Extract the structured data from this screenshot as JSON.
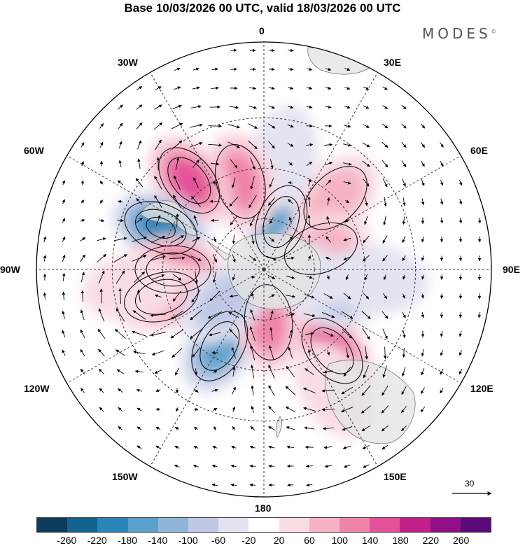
{
  "title": "Base 10/03/2026 00 UTC, valid 18/03/2026 00 UTC",
  "brand": "MODES",
  "brand_mark": "©",
  "longitude_labels": [
    "0",
    "30E",
    "60E",
    "90E",
    "120E",
    "150E",
    "180",
    "150W",
    "120W",
    "90W",
    "60W",
    "30W"
  ],
  "reference_vector": {
    "label": "30",
    "magnitude": 30
  },
  "colorbar": {
    "colors": [
      "#0d3b5c",
      "#14628f",
      "#2b85b8",
      "#5aa0cc",
      "#8fb6da",
      "#bfc9e6",
      "#e4e3f1",
      "#ffffff",
      "#f9dde2",
      "#f5b3c4",
      "#ef84a8",
      "#e2519a",
      "#c1208a",
      "#8f0f86",
      "#5b0b78"
    ],
    "tick_labels": [
      "-260",
      "-220",
      "-180",
      "-140",
      "-100",
      "-60",
      "-20",
      "20",
      "60",
      "100",
      "140",
      "180",
      "220",
      "260"
    ]
  },
  "field_anomalies": [
    {
      "lon": 20,
      "colat": 20,
      "value": -170
    },
    {
      "lon": 45,
      "colat": 40,
      "value": 90
    },
    {
      "lon": 70,
      "colat": 24,
      "value": 80
    },
    {
      "lon": 10,
      "colat": 45,
      "value": -30
    },
    {
      "lon": -15,
      "colat": 36,
      "value": 110
    },
    {
      "lon": -40,
      "colat": 46,
      "value": 150
    },
    {
      "lon": -68,
      "colat": 44,
      "value": -210
    },
    {
      "lon": -90,
      "colat": 36,
      "value": 160
    },
    {
      "lon": -105,
      "colat": 42,
      "value": 130
    },
    {
      "lon": -98,
      "colat": 52,
      "value": 50
    },
    {
      "lon": -150,
      "colat": 35,
      "value": -150
    },
    {
      "lon": 175,
      "colat": 21,
      "value": 100
    },
    {
      "lon": 140,
      "colat": 42,
      "value": 150
    },
    {
      "lon": 150,
      "colat": 55,
      "value": 40
    },
    {
      "lon": 110,
      "colat": 27,
      "value": -70
    },
    {
      "lon": 95,
      "colat": 45,
      "value": -30
    },
    {
      "lon": 100,
      "colat": 14,
      "value": -40
    },
    {
      "lon": -130,
      "colat": 20,
      "value": -60
    }
  ]
}
